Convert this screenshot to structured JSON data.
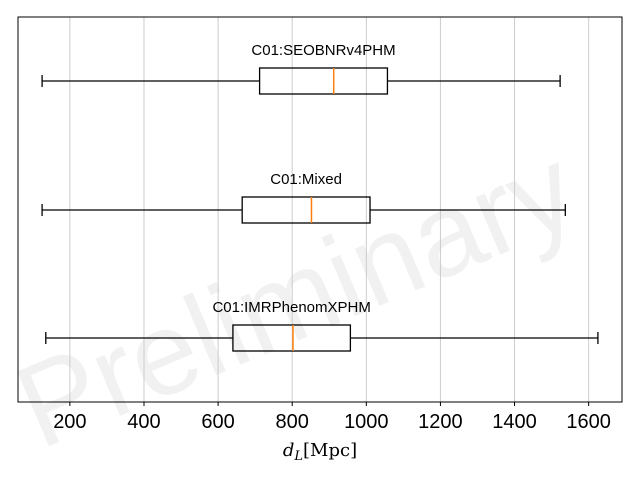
{
  "chart_data": {
    "type": "box",
    "orientation": "horizontal",
    "xlim": [
      60,
      1690
    ],
    "xticks": [
      200,
      400,
      600,
      800,
      1000,
      1200,
      1400,
      1600
    ],
    "xlabel": {
      "symbol": "d",
      "subscript": "L",
      "unit": "[Mpc]"
    },
    "grid": {
      "x": true,
      "y": false
    },
    "watermark": "Preliminary",
    "colors": {
      "box": "#000000",
      "median": "#ff7f0e",
      "grid": "#cccccc",
      "axes": "#000000"
    },
    "series": [
      {
        "name": "C01:SEOBNRv4PHM",
        "whisker_low": 125,
        "q1": 712,
        "median": 912,
        "q3": 1057,
        "whisker_high": 1523
      },
      {
        "name": "C01:Mixed",
        "whisker_low": 125,
        "q1": 665,
        "median": 852,
        "q3": 1010,
        "whisker_high": 1537
      },
      {
        "name": "C01:IMRPhenomXPHM",
        "whisker_low": 135,
        "q1": 640,
        "median": 802,
        "q3": 957,
        "whisker_high": 1625
      }
    ]
  }
}
